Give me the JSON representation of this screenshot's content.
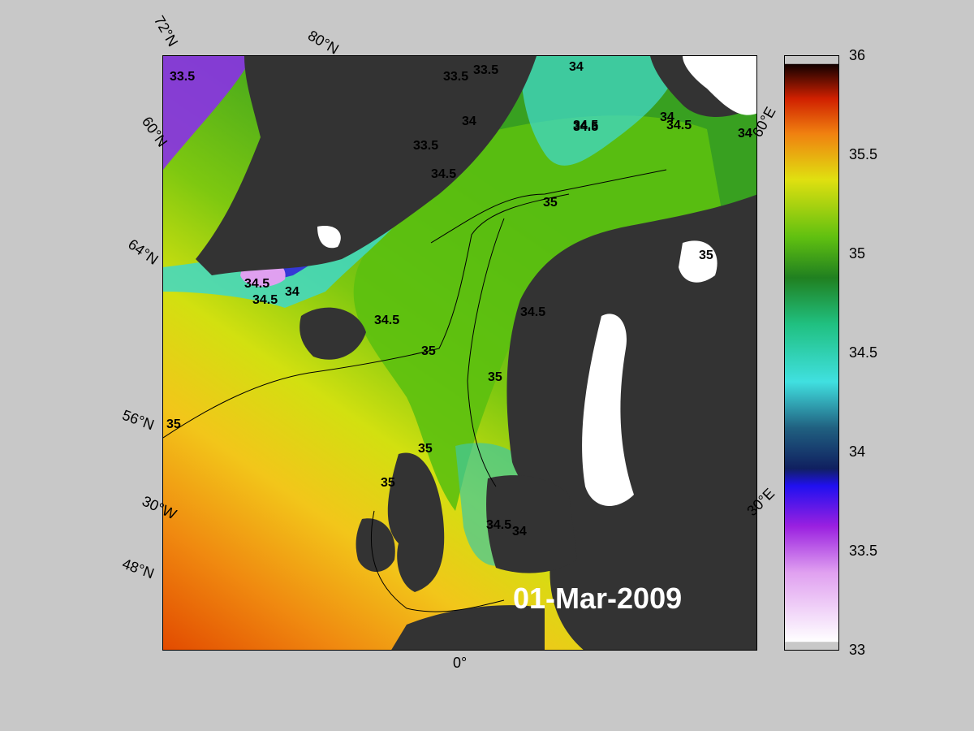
{
  "date": "01-Mar-2009",
  "lat_labels": [
    "72°N",
    "60°N",
    "64°N",
    "56°N",
    "48°N"
  ],
  "lon_labels": [
    "80°N",
    "60°E",
    "30°W",
    "30°E",
    "0°"
  ],
  "contour_labels": [
    "33.5",
    "33.5",
    "33.5",
    "34",
    "34.5",
    "34",
    "35",
    "34.5",
    "34.5",
    "34.5",
    "33.5",
    "34",
    "34.5",
    "34.5",
    "35",
    "35",
    "34.5",
    "35",
    "35",
    "35",
    "35",
    "34.5",
    "34",
    "34.5",
    "34",
    "34"
  ],
  "colorbar": {
    "ticks": [
      "36",
      "35.5",
      "35",
      "34.5",
      "34",
      "33.5",
      "33"
    ],
    "range": [
      33,
      36
    ]
  },
  "colors": {
    "land": "#333333",
    "ice": "#ffffff",
    "background": "#c8c8c8"
  }
}
